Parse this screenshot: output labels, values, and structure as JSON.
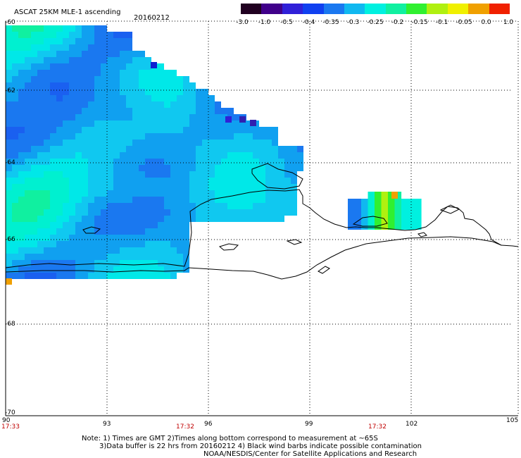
{
  "header": {
    "title": "ASCAT 25KM MLE-1 ascending",
    "date": "20160212"
  },
  "colorbar": {
    "labels": [
      "-3.0",
      "-1.0",
      "-0.5",
      "-0.4",
      "-0.35",
      "-0.3",
      "-0.25",
      "-0.2",
      "-0.15",
      "-0.1",
      "-0.05",
      "0.0",
      "1.0"
    ],
    "colors": [
      "#200020",
      "#40008a",
      "#3020d8",
      "#1040f0",
      "#1a78f0",
      "#10b8f0",
      "#00f0e0",
      "#10f0a0",
      "#30f030",
      "#b0f010",
      "#f0f000",
      "#f0a000",
      "#f02000"
    ]
  },
  "axes": {
    "lon_labels": [
      "90",
      "93",
      "96",
      "99",
      "102",
      "105"
    ],
    "lat_labels": [
      "-60",
      "-62",
      "-64",
      "-66",
      "-68",
      "-70"
    ],
    "time_labels": [
      "17:33",
      "17:32",
      "17:32"
    ]
  },
  "notes": {
    "line1": "Note: 1) Times are GMT 2)Times along bottom correspond to measurement at ~65S",
    "line2": "3)Data buffer is 22 hrs from 20160212 4) Black wind barbs indicate possible contamination",
    "line3": "NOAA/NESDIS/Center for Satellite Applications and Research"
  }
}
